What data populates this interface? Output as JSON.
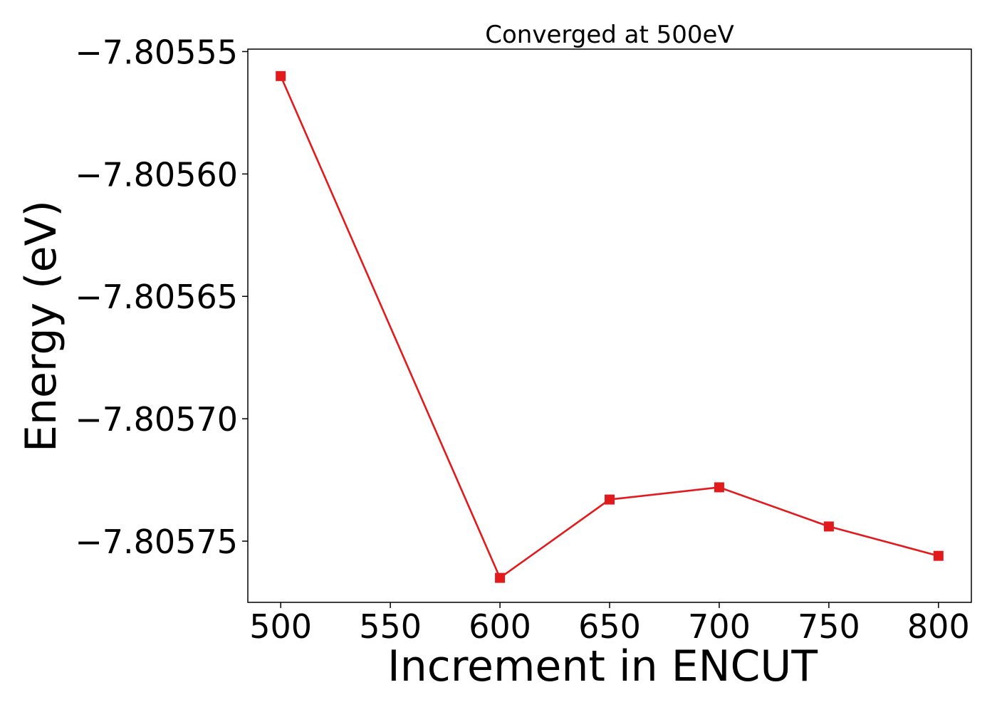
{
  "chart_data": {
    "type": "line",
    "title": "Converged at 500eV",
    "xlabel": "Increment in ENCUT",
    "ylabel": "Energy (eV)",
    "x": [
      500,
      600,
      650,
      700,
      750,
      800
    ],
    "series": [
      {
        "values": [
          -7.80556,
          -7.805765,
          -7.805733,
          -7.805728,
          -7.805744,
          -7.805756
        ],
        "color": "#e31a1c",
        "marker": "square"
      }
    ],
    "xticks": [
      500,
      550,
      600,
      650,
      700,
      750,
      800
    ],
    "xtick_labels": [
      "500",
      "550",
      "600",
      "650",
      "700",
      "750",
      "800"
    ],
    "yticks": [
      -7.80555,
      -7.8056,
      -7.80565,
      -7.8057,
      -7.80575
    ],
    "ytick_labels": [
      "−7.80555",
      "−7.80560",
      "−7.80565",
      "−7.80570",
      "−7.80575"
    ],
    "xlim": [
      485,
      815
    ],
    "ylim": [
      -7.805775,
      -7.805549
    ],
    "grid": false,
    "legend": "none"
  }
}
